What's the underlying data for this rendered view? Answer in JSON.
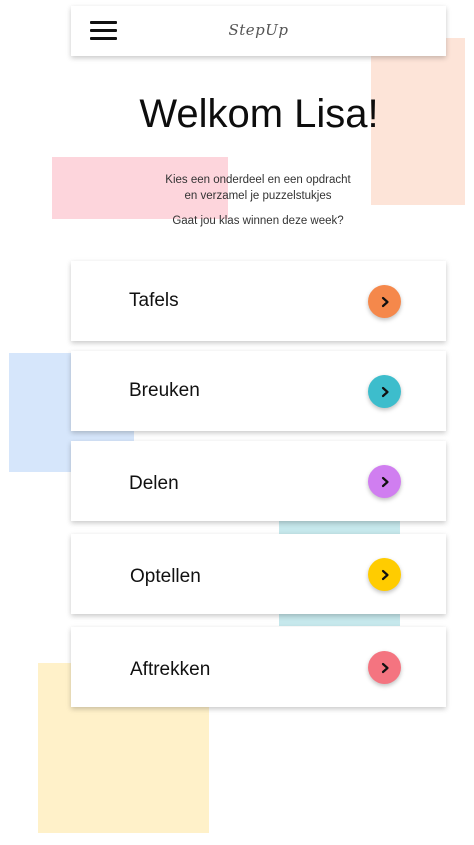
{
  "header": {
    "app_title": "StepUp"
  },
  "welcome": {
    "title": "Welkom Lisa!",
    "line1": "Kies een onderdeel en een opdracht",
    "line2": "en verzamel je puzzelstukjes",
    "line3": "Gaat jou klas winnen deze week?"
  },
  "categories": [
    {
      "label": "Tafels",
      "color": "#f5884b"
    },
    {
      "label": "Breuken",
      "color": "#3dbdcc"
    },
    {
      "label": "Delen",
      "color": "#d07ef0"
    },
    {
      "label": "Optellen",
      "color": "#ffcc00"
    },
    {
      "label": "Aftrekken",
      "color": "#f47480"
    }
  ],
  "decor_colors": {
    "peach": "#fde4d8",
    "pink": "#fdd5dc",
    "blue": "#d6e6fb",
    "teal": "#c6e8ec",
    "yellow": "#fff1c9"
  }
}
